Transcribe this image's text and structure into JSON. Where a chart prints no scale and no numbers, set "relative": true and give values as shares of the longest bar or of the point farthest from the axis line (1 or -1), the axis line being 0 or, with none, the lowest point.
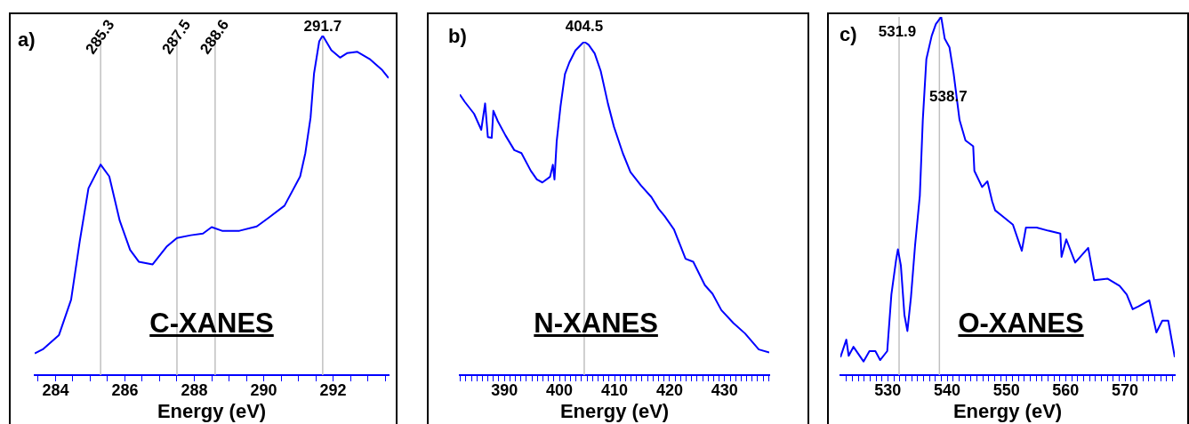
{
  "chart_data": [
    {
      "type": "line",
      "title": "a)",
      "xlabel": "Energy (eV)",
      "relative": true,
      "tick_labels": "x",
      "annotations": [
        "C-XANES"
      ],
      "x": [
        283.4,
        283.65,
        284.1,
        284.45,
        284.7,
        284.95,
        285.3,
        285.55,
        285.85,
        286.15,
        286.4,
        286.8,
        287.2,
        287.5,
        287.9,
        288.25,
        288.5,
        288.8,
        289.3,
        289.8,
        290.15,
        290.6,
        291.05,
        291.2,
        291.35,
        291.45,
        291.6,
        291.7,
        291.95,
        292.2,
        292.4,
        292.7,
        293.05,
        293.4,
        293.6
      ],
      "series": [
        {
          "color": "#0000ff",
          "values": [
            0.064,
            0.077,
            0.118,
            0.222,
            0.395,
            0.55,
            0.62,
            0.585,
            0.455,
            0.369,
            0.334,
            0.326,
            0.378,
            0.404,
            0.412,
            0.417,
            0.436,
            0.425,
            0.425,
            0.438,
            0.464,
            0.499,
            0.585,
            0.654,
            0.758,
            0.888,
            0.983,
            1.0,
            0.957,
            0.935,
            0.948,
            0.952,
            0.931,
            0.9,
            0.875
          ]
        }
      ],
      "xlim": [
        283.4,
        293.6
      ],
      "xticks": [
        {
          "value": 283.5,
          "label": null
        },
        284,
        {
          "value": 284.5,
          "label": null
        },
        {
          "value": 285,
          "label": null
        },
        {
          "value": 285.5,
          "label": null
        },
        286,
        {
          "value": 286.5,
          "label": null
        },
        {
          "value": 287,
          "label": null
        },
        {
          "value": 287.5,
          "label": null
        },
        288,
        {
          "value": 288.5,
          "label": null
        },
        {
          "value": 289,
          "label": null
        },
        {
          "value": 289.5,
          "label": null
        },
        290,
        {
          "value": 290.5,
          "label": null
        },
        {
          "value": 291,
          "label": null
        },
        {
          "value": 291.5,
          "label": null
        },
        292,
        {
          "value": 292.5,
          "label": null
        },
        {
          "value": 293,
          "label": null
        },
        {
          "value": 293.5,
          "label": null
        }
      ],
      "ref_lines": [
        {
          "axis": "x",
          "value": 285.3,
          "label": "285.3",
          "color": "#c0c0c0"
        },
        {
          "axis": "x",
          "value": 287.5,
          "label": "287.5",
          "color": "#c0c0c0"
        },
        {
          "axis": "x",
          "value": 288.6,
          "label": "288.6",
          "color": "#c0c0c0"
        },
        {
          "axis": "x",
          "value": 291.7,
          "label": "291.7",
          "color": "#c0c0c0"
        }
      ]
    },
    {
      "type": "line",
      "title": "b)",
      "xlabel": "Energy (eV)",
      "relative": true,
      "tick_labels": "x",
      "annotations": [
        "N-XANES"
      ],
      "x": [
        381.9,
        382.8,
        384.5,
        385.8,
        386.5,
        387.0,
        387.7,
        388.0,
        388.8,
        390.2,
        391.8,
        393.1,
        394.8,
        395.9,
        396.9,
        398.3,
        398.8,
        399.1,
        399.5,
        400.2,
        401.0,
        401.8,
        402.9,
        404.2,
        404.5,
        405.3,
        406.4,
        407.5,
        408.8,
        409.9,
        411.5,
        412.9,
        414.8,
        416.7,
        418.0,
        419.1,
        420.8,
        422.9,
        424.3,
        426.4,
        427.8,
        429.4,
        431.6,
        433.7,
        436.2,
        438.1
      ],
      "series": [
        {
          "color": "#0000ff",
          "values": [
            0.842,
            0.82,
            0.784,
            0.736,
            0.815,
            0.714,
            0.712,
            0.793,
            0.762,
            0.719,
            0.675,
            0.666,
            0.613,
            0.587,
            0.578,
            0.595,
            0.631,
            0.587,
            0.701,
            0.807,
            0.903,
            0.938,
            0.974,
            0.996,
            1.0,
            0.991,
            0.965,
            0.912,
            0.815,
            0.745,
            0.666,
            0.609,
            0.569,
            0.534,
            0.499,
            0.477,
            0.437,
            0.349,
            0.34,
            0.27,
            0.244,
            0.195,
            0.156,
            0.125,
            0.077,
            0.068
          ]
        }
      ],
      "xlim": [
        381.9,
        438.1
      ],
      "xticks": [
        {
          "value": 382,
          "label": null
        },
        {
          "value": 383,
          "label": null
        },
        {
          "value": 384,
          "label": null
        },
        {
          "value": 385,
          "label": null
        },
        {
          "value": 386,
          "label": null
        },
        {
          "value": 387,
          "label": null
        },
        {
          "value": 388,
          "label": null
        },
        {
          "value": 389,
          "label": null
        },
        390,
        {
          "value": 391,
          "label": null
        },
        {
          "value": 392,
          "label": null
        },
        {
          "value": 393,
          "label": null
        },
        {
          "value": 394,
          "label": null
        },
        {
          "value": 395,
          "label": null
        },
        {
          "value": 396,
          "label": null
        },
        {
          "value": 397,
          "label": null
        },
        {
          "value": 398,
          "label": null
        },
        {
          "value": 399,
          "label": null
        },
        400,
        {
          "value": 401,
          "label": null
        },
        {
          "value": 402,
          "label": null
        },
        {
          "value": 403,
          "label": null
        },
        {
          "value": 404,
          "label": null
        },
        {
          "value": 405,
          "label": null
        },
        {
          "value": 406,
          "label": null
        },
        {
          "value": 407,
          "label": null
        },
        {
          "value": 408,
          "label": null
        },
        {
          "value": 409,
          "label": null
        },
        410,
        {
          "value": 411,
          "label": null
        },
        {
          "value": 412,
          "label": null
        },
        {
          "value": 413,
          "label": null
        },
        {
          "value": 414,
          "label": null
        },
        {
          "value": 415,
          "label": null
        },
        {
          "value": 416,
          "label": null
        },
        {
          "value": 417,
          "label": null
        },
        {
          "value": 418,
          "label": null
        },
        {
          "value": 419,
          "label": null
        },
        420,
        {
          "value": 421,
          "label": null
        },
        {
          "value": 422,
          "label": null
        },
        {
          "value": 423,
          "label": null
        },
        {
          "value": 424,
          "label": null
        },
        {
          "value": 425,
          "label": null
        },
        {
          "value": 426,
          "label": null
        },
        {
          "value": 427,
          "label": null
        },
        {
          "value": 428,
          "label": null
        },
        {
          "value": 429,
          "label": null
        },
        430,
        {
          "value": 431,
          "label": null
        },
        {
          "value": 432,
          "label": null
        },
        {
          "value": 433,
          "label": null
        },
        {
          "value": 434,
          "label": null
        },
        {
          "value": 435,
          "label": null
        },
        {
          "value": 436,
          "label": null
        },
        {
          "value": 437,
          "label": null
        },
        {
          "value": 438,
          "label": null
        }
      ],
      "ref_lines": [
        {
          "axis": "x",
          "value": 404.5,
          "label": "404.5",
          "color": "#c0c0c0"
        }
      ]
    },
    {
      "type": "line",
      "title": "c)",
      "xlabel": "Energy (eV)",
      "relative": true,
      "tick_labels": "x",
      "annotations": [
        "O-XANES"
      ],
      "x": [
        522.0,
        523.0,
        523.4,
        524.2,
        525.9,
        526.9,
        527.9,
        528.7,
        529.9,
        530.6,
        531.4,
        531.7,
        532.2,
        532.8,
        533.3,
        533.9,
        534.6,
        535.4,
        535.9,
        536.5,
        537.4,
        538.1,
        539.0,
        539.6,
        540.4,
        541.1,
        542.1,
        543.1,
        544.4,
        544.6,
        545.9,
        546.8,
        547.6,
        548.1,
        549.3,
        551.1,
        552.6,
        553.3,
        555.1,
        557.1,
        559.1,
        559.3,
        560.1,
        561.6,
        563.8,
        564.8,
        567.1,
        569.1,
        570.3,
        571.3,
        572.3,
        574.1,
        575.3,
        576.3,
        577.3,
        578.4
      ],
      "series": [
        {
          "color": "#0000ff",
          "values": [
            0.05,
            0.099,
            0.054,
            0.079,
            0.038,
            0.067,
            0.067,
            0.042,
            0.067,
            0.225,
            0.322,
            0.351,
            0.306,
            0.168,
            0.123,
            0.217,
            0.363,
            0.501,
            0.712,
            0.882,
            0.947,
            0.98,
            1.0,
            0.939,
            0.915,
            0.842,
            0.712,
            0.655,
            0.639,
            0.57,
            0.525,
            0.541,
            0.485,
            0.46,
            0.444,
            0.42,
            0.347,
            0.412,
            0.412,
            0.403,
            0.395,
            0.33,
            0.379,
            0.314,
            0.355,
            0.265,
            0.269,
            0.249,
            0.225,
            0.184,
            0.192,
            0.209,
            0.119,
            0.152,
            0.152,
            0.05
          ]
        }
      ],
      "xlim": [
        522.0,
        578.4
      ],
      "xticks": [
        {
          "value": 523,
          "label": null
        },
        {
          "value": 524,
          "label": null
        },
        {
          "value": 525,
          "label": null
        },
        {
          "value": 526,
          "label": null
        },
        {
          "value": 527,
          "label": null
        },
        {
          "value": 528,
          "label": null
        },
        {
          "value": 529,
          "label": null
        },
        530,
        {
          "value": 531,
          "label": null
        },
        {
          "value": 532,
          "label": null
        },
        {
          "value": 533,
          "label": null
        },
        {
          "value": 534,
          "label": null
        },
        {
          "value": 535,
          "label": null
        },
        {
          "value": 536,
          "label": null
        },
        {
          "value": 537,
          "label": null
        },
        {
          "value": 538,
          "label": null
        },
        {
          "value": 539,
          "label": null
        },
        540,
        {
          "value": 541,
          "label": null
        },
        {
          "value": 542,
          "label": null
        },
        {
          "value": 543,
          "label": null
        },
        {
          "value": 544,
          "label": null
        },
        {
          "value": 545,
          "label": null
        },
        {
          "value": 546,
          "label": null
        },
        {
          "value": 547,
          "label": null
        },
        {
          "value": 548,
          "label": null
        },
        {
          "value": 549,
          "label": null
        },
        550,
        {
          "value": 551,
          "label": null
        },
        {
          "value": 552,
          "label": null
        },
        {
          "value": 553,
          "label": null
        },
        {
          "value": 554,
          "label": null
        },
        {
          "value": 555,
          "label": null
        },
        {
          "value": 556,
          "label": null
        },
        {
          "value": 557,
          "label": null
        },
        {
          "value": 558,
          "label": null
        },
        {
          "value": 559,
          "label": null
        },
        560,
        {
          "value": 561,
          "label": null
        },
        {
          "value": 562,
          "label": null
        },
        {
          "value": 563,
          "label": null
        },
        {
          "value": 564,
          "label": null
        },
        {
          "value": 565,
          "label": null
        },
        {
          "value": 566,
          "label": null
        },
        {
          "value": 567,
          "label": null
        },
        {
          "value": 568,
          "label": null
        },
        {
          "value": 569,
          "label": null
        },
        570,
        {
          "value": 571,
          "label": null
        },
        {
          "value": 572,
          "label": null
        },
        {
          "value": 573,
          "label": null
        },
        {
          "value": 574,
          "label": null
        },
        {
          "value": 575,
          "label": null
        },
        {
          "value": 576,
          "label": null
        },
        {
          "value": 577,
          "label": null
        },
        {
          "value": 578,
          "label": null
        }
      ],
      "ref_lines": [
        {
          "axis": "x",
          "value": 531.9,
          "label": "531.9",
          "color": "#c0c0c0"
        },
        {
          "axis": "x",
          "value": 538.7,
          "label": "538.7",
          "color": "#c0c0c0"
        }
      ]
    }
  ]
}
